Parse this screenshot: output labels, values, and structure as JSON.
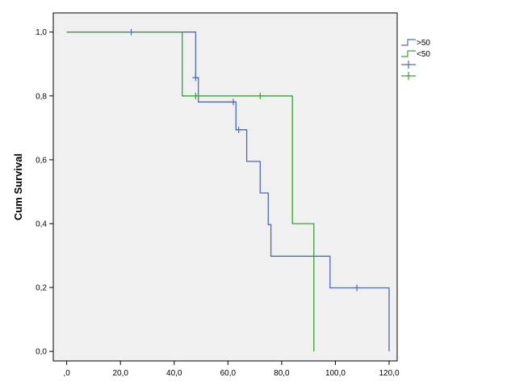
{
  "chart_data": {
    "type": "line",
    "subtype": "kaplan-meier-step",
    "title": "",
    "xlabel": "",
    "ylabel": "Cum Survival",
    "xlim": [
      -5,
      123
    ],
    "ylim": [
      -0.03,
      1.06
    ],
    "xticks": [
      0,
      20,
      40,
      60,
      80,
      100,
      120
    ],
    "xtick_labels": [
      ",0",
      "20,0",
      "40,0",
      "60,0",
      "80,0",
      "100,0",
      "120,0"
    ],
    "yticks": [
      0,
      0.2,
      0.4,
      0.6,
      0.8,
      1.0
    ],
    "ytick_labels": [
      "0,0",
      "0,2",
      "0,4",
      "0,6",
      "0,8",
      "1,0"
    ],
    "grid": false,
    "legend_placement": "outside-top-right",
    "plot_background": "#f0f0f0",
    "series": [
      {
        "name": ">50",
        "color": "#5169b1",
        "steps": [
          [
            0,
            1.0
          ],
          [
            48,
            1.0
          ],
          [
            48,
            0.857
          ],
          [
            49,
            0.857
          ],
          [
            49,
            0.781
          ],
          [
            62,
            0.781
          ],
          [
            62,
            0.781
          ],
          [
            63,
            0.781
          ],
          [
            63,
            0.694
          ],
          [
            67,
            0.694
          ],
          [
            67,
            0.595
          ],
          [
            72,
            0.595
          ],
          [
            72,
            0.496
          ],
          [
            75,
            0.496
          ],
          [
            75,
            0.397
          ],
          [
            76,
            0.397
          ],
          [
            76,
            0.298
          ],
          [
            98,
            0.298
          ],
          [
            98,
            0.199
          ],
          [
            120,
            0.199
          ],
          [
            120,
            0.0
          ]
        ],
        "censored": [
          [
            24,
            1.0
          ],
          [
            48,
            0.857
          ],
          [
            62,
            0.781
          ],
          [
            64,
            0.694
          ],
          [
            108,
            0.199
          ]
        ]
      },
      {
        "name": "<50",
        "color": "#3ba03b",
        "steps": [
          [
            0,
            1.0
          ],
          [
            43,
            1.0
          ],
          [
            43,
            0.8
          ],
          [
            84,
            0.8
          ],
          [
            84,
            0.4
          ],
          [
            92,
            0.4
          ],
          [
            92,
            0.0
          ]
        ],
        "censored": [
          [
            48,
            0.8
          ],
          [
            72,
            0.8
          ]
        ]
      }
    ],
    "legend": [
      {
        "label": ">50",
        "kind": "line",
        "color": "#5169b1"
      },
      {
        "label": "<50",
        "kind": "line",
        "color": "#3ba03b"
      },
      {
        "label": "",
        "kind": "censor",
        "color": "#5169b1"
      },
      {
        "label": "",
        "kind": "censor",
        "color": "#3ba03b"
      }
    ]
  }
}
